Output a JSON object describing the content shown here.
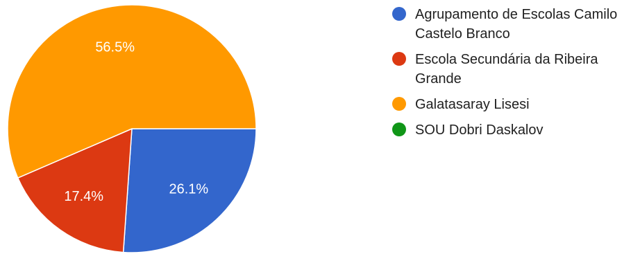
{
  "chart_data": {
    "type": "pie",
    "title": "",
    "legend_position": "right",
    "slices": [
      {
        "name": "Agrupamento de Escolas Camilo Castelo Branco",
        "value": 26.1,
        "label": "26.1%",
        "color": "#3366cc"
      },
      {
        "name": "Escola Secundária da Ribeira Grande",
        "value": 17.4,
        "label": "17.4%",
        "color": "#dc3912"
      },
      {
        "name": "Galatasaray Lisesi",
        "value": 56.5,
        "label": "56.5%",
        "color": "#ff9900"
      },
      {
        "name": "SOU Dobri Daskalov",
        "value": 0,
        "label": "",
        "color": "#109618"
      }
    ]
  }
}
